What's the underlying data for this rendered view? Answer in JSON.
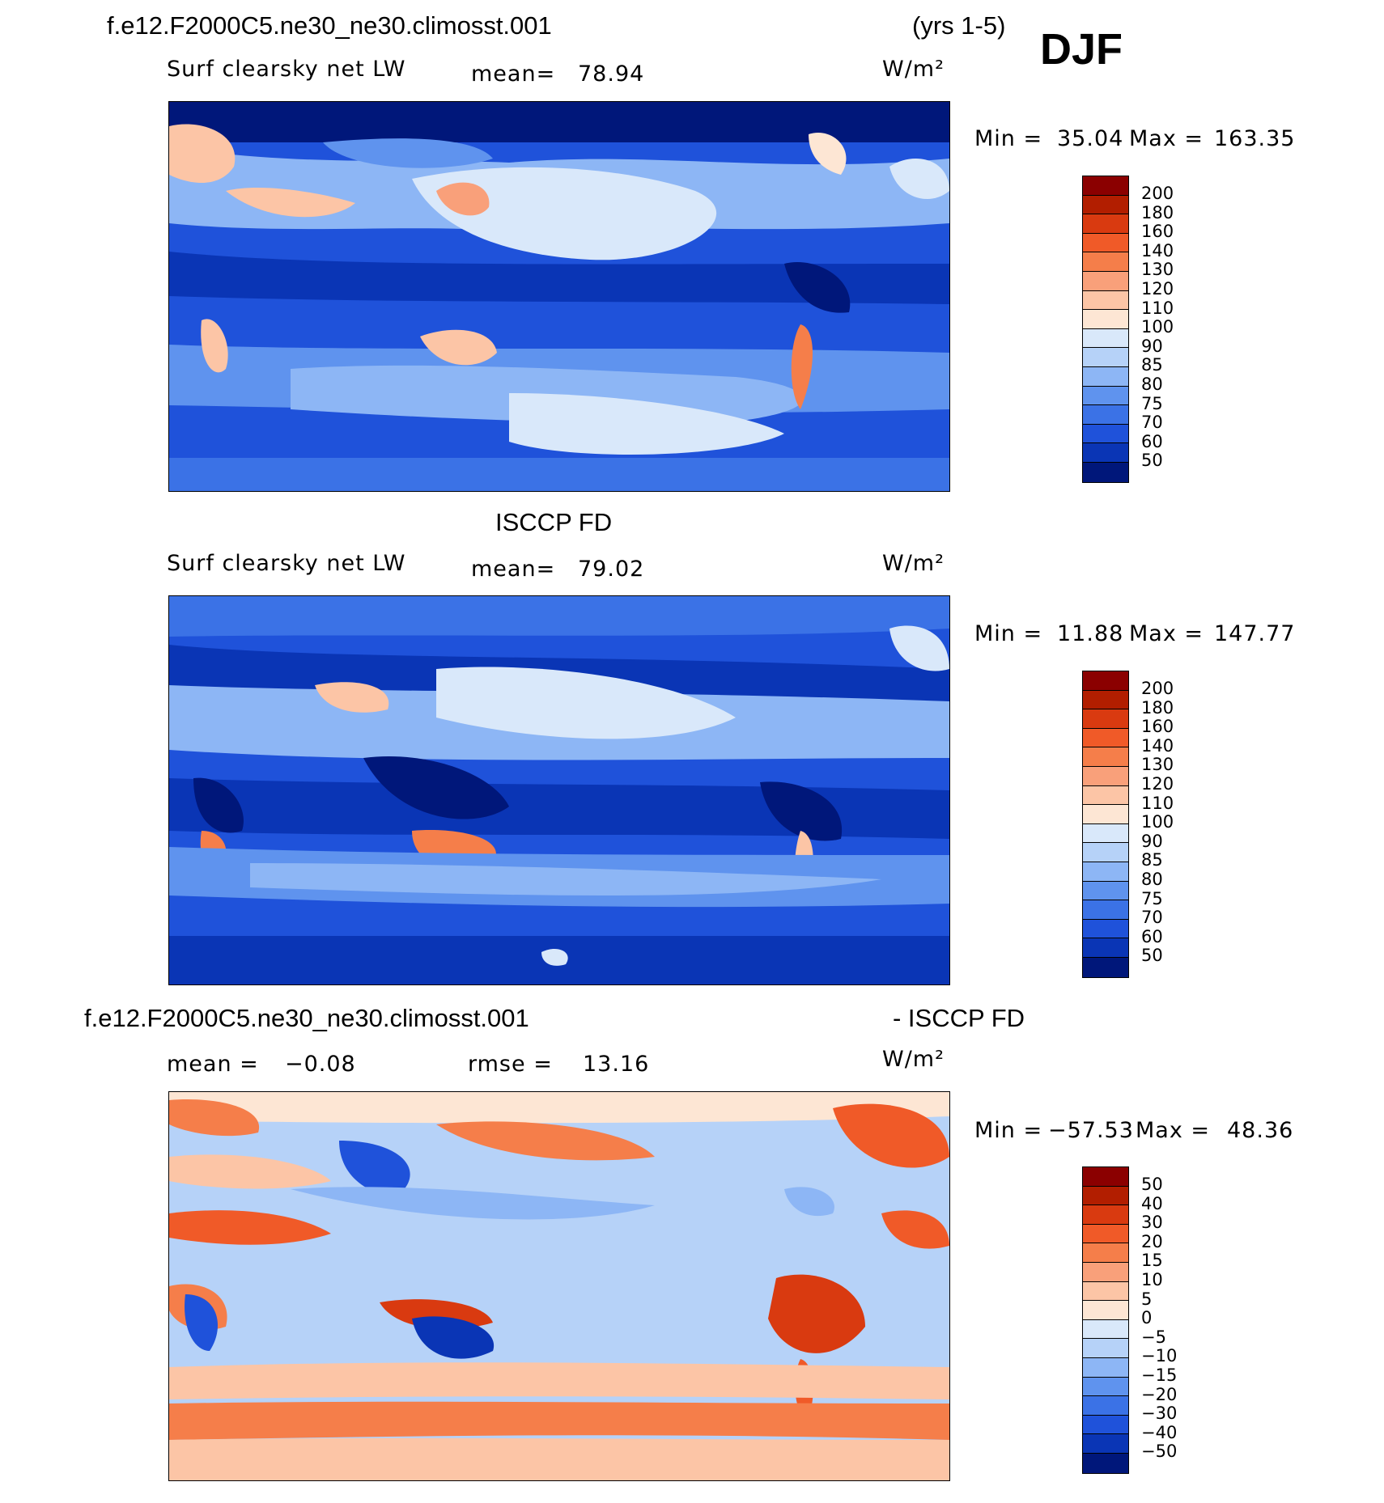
{
  "header": {
    "case_name": "f.e12.F2000C5.ne30_ne30.climosst.001",
    "years": "(yrs 1-5)",
    "season": "DJF"
  },
  "panels": [
    {
      "variable": "Surf clearsky net LW",
      "stat_label": "mean=",
      "stat_value": "78.94",
      "units": "W/m²",
      "min_label": "Min =",
      "min_value": "35.04",
      "max_label": "Max =",
      "max_value": "163.35",
      "levels": [
        "200",
        "180",
        "160",
        "140",
        "130",
        "120",
        "110",
        "100",
        "90",
        "85",
        "80",
        "75",
        "70",
        "60",
        "50"
      ]
    },
    {
      "title": "ISCCP FD",
      "variable": "Surf clearsky net LW",
      "stat_label": "mean=",
      "stat_value": "79.02",
      "units": "W/m²",
      "min_label": "Min =",
      "min_value": "11.88",
      "max_label": "Max =",
      "max_value": "147.77",
      "levels": [
        "200",
        "180",
        "160",
        "140",
        "130",
        "120",
        "110",
        "100",
        "90",
        "85",
        "80",
        "75",
        "70",
        "60",
        "50"
      ]
    },
    {
      "title_left": "f.e12.F2000C5.ne30_ne30.climosst.001",
      "title_right": "- ISCCP FD",
      "stat_label": "mean =",
      "stat_value": "−0.08",
      "rmse_label": "rmse =",
      "rmse_value": "13.16",
      "units": "W/m²",
      "min_label": "Min =",
      "min_value": "−57.53",
      "max_label": "Max =",
      "max_value": "48.36",
      "levels": [
        "50",
        "40",
        "30",
        "20",
        "15",
        "10",
        "5",
        "0",
        "−5",
        "−10",
        "−15",
        "−20",
        "−30",
        "−40",
        "−50"
      ]
    }
  ],
  "palette": [
    "#8b0000",
    "#b21e00",
    "#d93a10",
    "#f05a28",
    "#f57e4a",
    "#f9a07a",
    "#fcc5a6",
    "#fde6d4",
    "#d9e8fa",
    "#b6d2f8",
    "#8db6f5",
    "#5f93ee",
    "#3b72e6",
    "#1f52da",
    "#0a35b5",
    "#00177a"
  ]
}
